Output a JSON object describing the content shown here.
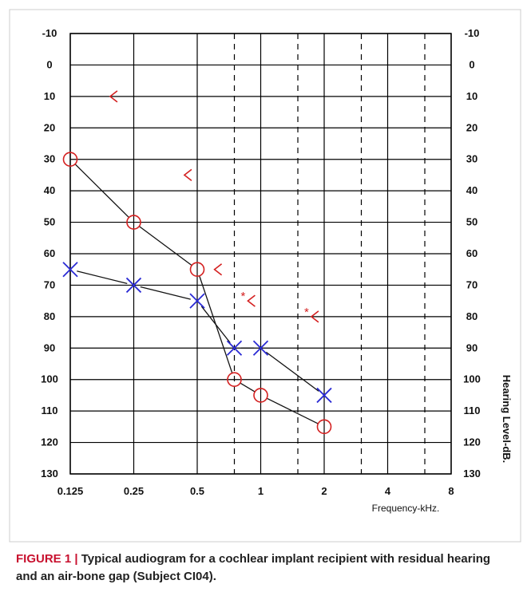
{
  "figure": {
    "caption_label": "FIGURE 1 | ",
    "caption_text": "Typical audiogram for a cochlear implant recipient with residual hearing and an air-bone gap (Subject CI04)."
  },
  "chart_data": {
    "type": "scatter",
    "title": "",
    "xlabel": "Frequency-kHz.",
    "ylabel": "Hearing Level-dB.",
    "x_scale": "log2",
    "x_ticks": [
      "0.125",
      "0.25",
      "0.5",
      "1",
      "2",
      "4",
      "8"
    ],
    "x_tick_values": [
      0.125,
      0.25,
      0.5,
      1,
      2,
      4,
      8
    ],
    "x_dashed_gridlines": [
      0.75,
      1.5,
      3,
      6
    ],
    "ylim": [
      -10,
      130
    ],
    "y_inverted": true,
    "y_ticks": [
      "-10",
      "0",
      "10",
      "20",
      "30",
      "40",
      "50",
      "60",
      "70",
      "80",
      "90",
      "100",
      "110",
      "120",
      "130"
    ],
    "colors": {
      "right_ear": "#d42020",
      "left_ear": "#2a2ad4",
      "line": "#111111",
      "grid": "#000000"
    },
    "series": [
      {
        "symbol": "O",
        "color": "#d42020",
        "x": [
          0.125,
          0.25,
          0.5,
          0.75,
          1,
          2
        ],
        "y": [
          30,
          50,
          65,
          100,
          105,
          115
        ]
      },
      {
        "symbol": "X",
        "color": "#2a2ad4",
        "x": [
          0.125,
          0.25,
          0.5,
          0.75,
          1,
          2
        ],
        "y": [
          65,
          70,
          75,
          90,
          90,
          105
        ]
      },
      {
        "symbol": "<",
        "color": "#d42020",
        "x": [
          0.2,
          0.45,
          0.625
        ],
        "y": [
          10,
          35,
          65
        ]
      },
      {
        "symbol": "*<",
        "color": "#d42020",
        "x": [
          0.9,
          1.8
        ],
        "y": [
          75,
          80
        ]
      }
    ]
  }
}
